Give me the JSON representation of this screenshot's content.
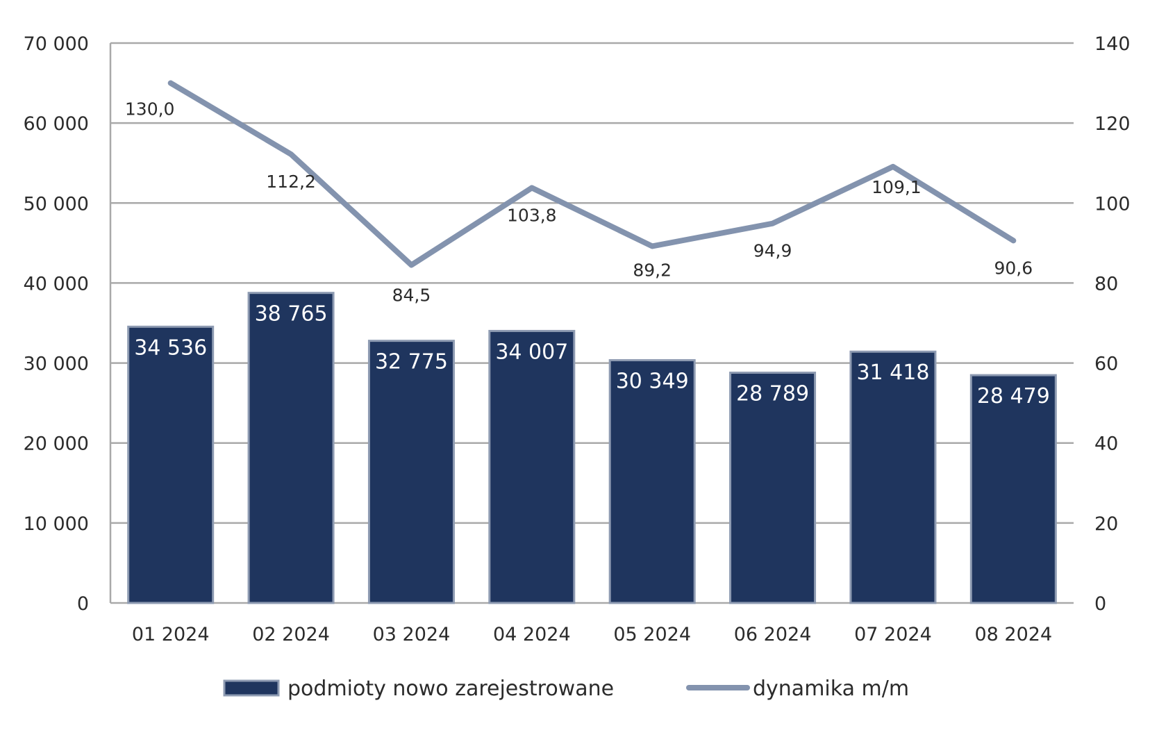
{
  "chart_data": {
    "type": "bar",
    "categories": [
      "01 2024",
      "02 2024",
      "03 2024",
      "04 2024",
      "05 2024",
      "06 2024",
      "07 2024",
      "08 2024"
    ],
    "series": [
      {
        "name": "podmioty nowo zarejestrowane",
        "type": "bar",
        "axis": "left",
        "values": [
          34536,
          38765,
          32775,
          34007,
          30349,
          28789,
          31418,
          28479
        ],
        "labels": [
          "34 536",
          "38 765",
          "32 775",
          "34 007",
          "30 349",
          "28 789",
          "31 418",
          "28 479"
        ],
        "color": "#1f355e"
      },
      {
        "name": "dynamika m/m",
        "type": "line",
        "axis": "right",
        "values": [
          130.0,
          112.2,
          84.5,
          103.8,
          89.2,
          94.9,
          109.1,
          90.6
        ],
        "labels": [
          "130,0",
          "112,2",
          "84,5",
          "103,8",
          "89,2",
          "94,9",
          "109,1",
          "90,6"
        ],
        "color": "#8393ae"
      }
    ],
    "y_left": {
      "ylim": [
        0,
        70000
      ],
      "ticks": [
        "0",
        "10 000",
        "20 000",
        "30 000",
        "40 000",
        "50 000",
        "60 000",
        "70 000"
      ]
    },
    "y_right": {
      "ylim": [
        0,
        140
      ],
      "ticks": [
        "0",
        "20",
        "40",
        "60",
        "80",
        "100",
        "120",
        "140"
      ]
    },
    "grid": true,
    "legend": {
      "position": "bottom",
      "entries": [
        "podmioty nowo zarejestrowane",
        "dynamika m/m"
      ]
    }
  }
}
